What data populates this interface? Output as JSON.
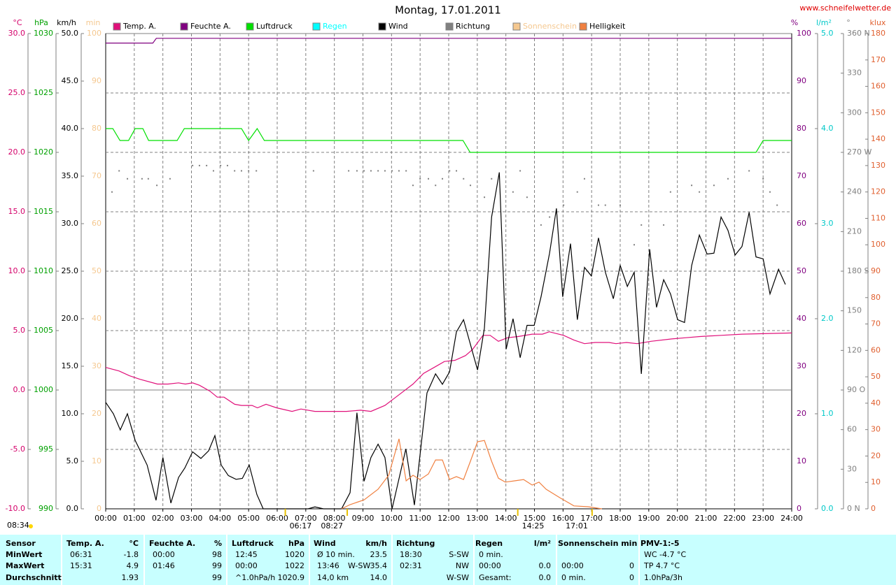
{
  "chart_data": {
    "type": "line",
    "title": "Montag, 17.01.2011",
    "source": "www.schneifelwetter.de",
    "grid": true,
    "xlim": [
      0,
      24
    ],
    "xticks": [
      {
        "value": 0,
        "label": "00:00"
      },
      {
        "value": 1,
        "label": "01:00"
      },
      {
        "value": 2,
        "label": "02:00"
      },
      {
        "value": 3,
        "label": "03:00"
      },
      {
        "value": 4,
        "label": "04:00"
      },
      {
        "value": 5,
        "label": "05:00"
      },
      {
        "value": 6,
        "label": "06:00"
      },
      {
        "value": 7,
        "label": "07:00"
      },
      {
        "value": 8,
        "label": "08:00"
      },
      {
        "value": 9,
        "label": "09:00"
      },
      {
        "value": 10,
        "label": "10:00"
      },
      {
        "value": 11,
        "label": "11:00"
      },
      {
        "value": 12,
        "label": "12:00"
      },
      {
        "value": 13,
        "label": "13:00"
      },
      {
        "value": 14,
        "label": "14:00"
      },
      {
        "value": 15,
        "label": "15:00"
      },
      {
        "value": 16,
        "label": "16:00"
      },
      {
        "value": 17,
        "label": "17:00"
      },
      {
        "value": 18,
        "label": "18:00"
      },
      {
        "value": 19,
        "label": "19:00"
      },
      {
        "value": 20,
        "label": "20:00"
      },
      {
        "value": 21,
        "label": "21:00"
      },
      {
        "value": 22,
        "label": "22:00"
      },
      {
        "value": 23,
        "label": "23:00"
      },
      {
        "value": 24,
        "label": "24:00"
      }
    ],
    "axes": {
      "temp": {
        "label": "°C",
        "color": "#d4006a",
        "lim": [
          -10,
          30
        ],
        "ticks": [
          {
            "value": -10,
            "label": "-10.0"
          },
          {
            "value": -5,
            "label": "-5.0"
          },
          {
            "value": 0,
            "label": "0.0"
          },
          {
            "value": 5,
            "label": "5.0"
          },
          {
            "value": 10,
            "label": "10.0"
          },
          {
            "value": 15,
            "label": "15.0"
          },
          {
            "value": 20,
            "label": "20.0"
          },
          {
            "value": 25,
            "label": "25.0"
          },
          {
            "value": 30,
            "label": "30.0"
          }
        ]
      },
      "hpa": {
        "label": "hPa",
        "color": "#00a000",
        "lim": [
          990,
          1030
        ],
        "ticks": [
          990,
          995,
          1000,
          1005,
          1010,
          1015,
          1020,
          1025,
          1030
        ]
      },
      "kmh": {
        "label": "km/h",
        "color": "#000000",
        "lim": [
          0,
          50
        ],
        "ticks": [
          {
            "value": 0,
            "label": "0.0"
          },
          {
            "value": 5,
            "label": "5.0"
          },
          {
            "value": 10,
            "label": "10.0"
          },
          {
            "value": 15,
            "label": "15.0"
          },
          {
            "value": 20,
            "label": "20.0"
          },
          {
            "value": 25,
            "label": "25.0"
          },
          {
            "value": 30,
            "label": "30.0"
          },
          {
            "value": 35,
            "label": "35.0"
          },
          {
            "value": 40,
            "label": "40.0"
          },
          {
            "value": 45,
            "label": "45.0"
          },
          {
            "value": 50,
            "label": "50.0"
          }
        ]
      },
      "min": {
        "label": "min",
        "color": "#f5c890",
        "lim": [
          0,
          100
        ],
        "ticks": [
          0,
          10,
          20,
          30,
          40,
          50,
          60,
          70,
          80,
          90,
          100
        ]
      },
      "hum": {
        "label": "%",
        "color": "#800080",
        "lim": [
          0,
          100
        ],
        "ticks": [
          0,
          10,
          20,
          30,
          40,
          50,
          60,
          70,
          80,
          90,
          100
        ]
      },
      "rain": {
        "label": "l/m²",
        "color": "#00c8c8",
        "lim": [
          0,
          5
        ],
        "ticks": [
          {
            "value": 0,
            "label": "0.0"
          },
          {
            "value": 1,
            "label": "1.0"
          },
          {
            "value": 2,
            "label": "2.0"
          },
          {
            "value": 3,
            "label": "3.0"
          },
          {
            "value": 4,
            "label": "4.0"
          },
          {
            "value": 5,
            "label": "5.0"
          }
        ]
      },
      "dir": {
        "label": "°",
        "color": "#808080",
        "lim": [
          0,
          360
        ],
        "ticks": [
          {
            "value": 0,
            "label": "0 N"
          },
          30,
          60,
          {
            "value": 90,
            "label": "90 O"
          },
          120,
          150,
          {
            "value": 180,
            "label": "180 S"
          },
          210,
          240,
          {
            "value": 270,
            "label": "270 W"
          },
          300,
          330,
          {
            "value": 360,
            "label": "360 N"
          }
        ]
      },
      "klux": {
        "label": "klux",
        "color": "#e06030",
        "lim": [
          0,
          180
        ],
        "ticks": [
          0,
          10,
          20,
          30,
          40,
          50,
          60,
          70,
          80,
          90,
          100,
          110,
          120,
          130,
          140,
          150,
          160,
          170,
          180
        ]
      }
    },
    "series": [
      {
        "name": "Temp. A.",
        "color": "#e0107a",
        "axis": "temp",
        "type": "line",
        "x": [
          0,
          0.47,
          0.83,
          1.2,
          1.81,
          2.18,
          2.55,
          2.79,
          3.04,
          3.28,
          3.65,
          3.9,
          4.14,
          4.51,
          4.75,
          5.12,
          5.31,
          5.61,
          5.98,
          6.52,
          6.83,
          7.32,
          7.81,
          8.42,
          8.92,
          9.28,
          9.77,
          10.26,
          10.75,
          11.12,
          11.49,
          11.85,
          12.22,
          12.59,
          12.83,
          13.2,
          13.45,
          13.74,
          14.06,
          14.43,
          14.92,
          15.28,
          15.52,
          16.02,
          16.38,
          16.75,
          17.12,
          17.61,
          17.85,
          18.22,
          18.59,
          19.08,
          19.81,
          20.3,
          20.79,
          21.53,
          22.26,
          24
        ],
        "values": [
          1.9,
          1.6,
          1.2,
          0.9,
          0.5,
          0.5,
          0.6,
          0.5,
          0.6,
          0.4,
          -0.1,
          -0.6,
          -0.6,
          -1.2,
          -1.3,
          -1.3,
          -1.5,
          -1.2,
          -1.5,
          -1.8,
          -1.6,
          -1.8,
          -1.8,
          -1.8,
          -1.7,
          -1.8,
          -1.3,
          -0.4,
          0.5,
          1.4,
          1.9,
          2.4,
          2.5,
          2.9,
          3.4,
          4.6,
          4.6,
          4.1,
          4.4,
          4.5,
          4.7,
          4.7,
          4.9,
          4.6,
          4.2,
          3.9,
          4.0,
          4.0,
          3.9,
          4.0,
          3.9,
          4.1,
          4.3,
          4.4,
          4.5,
          4.6,
          4.7,
          4.8
        ]
      },
      {
        "name": "Feuchte A.",
        "color": "#800080",
        "axis": "hum",
        "type": "line",
        "x": [
          0,
          1.65,
          1.77,
          24
        ],
        "values": [
          98,
          98,
          99,
          99
        ]
      },
      {
        "name": "Luftdruck",
        "color": "#00e000",
        "axis": "hpa",
        "type": "line",
        "x": [
          0,
          0.25,
          0.5,
          0.8,
          1.03,
          1.3,
          1.5,
          2.5,
          2.75,
          4.75,
          5.0,
          5.3,
          5.55,
          12.5,
          12.75,
          22.75,
          23.0,
          24
        ],
        "values": [
          1022,
          1022,
          1021,
          1021,
          1022,
          1022,
          1021,
          1021,
          1022,
          1022,
          1021,
          1022,
          1021,
          1021,
          1020,
          1020,
          1021,
          1021
        ]
      },
      {
        "name": "Regen",
        "color": "#00ffff",
        "axis": "rain",
        "type": "line",
        "x": [],
        "values": []
      },
      {
        "name": "Wind",
        "color": "#000000",
        "axis": "kmh",
        "type": "line",
        "x": [
          0,
          0.27,
          0.51,
          0.76,
          1.03,
          1.45,
          1.76,
          2.0,
          2.28,
          2.55,
          2.77,
          3.04,
          3.33,
          3.6,
          3.82,
          4.04,
          4.29,
          4.56,
          4.78,
          5.02,
          5.29,
          5.51,
          7.08,
          7.32,
          7.62,
          8.25,
          8.55,
          8.79,
          9.04,
          9.28,
          9.53,
          9.77,
          10.02,
          10.5,
          10.8,
          11.24,
          11.54,
          11.78,
          12.03,
          12.27,
          12.52,
          13.01,
          13.25,
          13.5,
          13.77,
          14.01,
          14.25,
          14.5,
          14.74,
          14.99,
          15.23,
          15.53,
          15.77,
          15.99,
          16.26,
          16.5,
          16.75,
          16.99,
          17.24,
          17.48,
          17.76,
          18.0,
          18.25,
          18.49,
          18.74,
          19.03,
          19.27,
          19.52,
          19.76,
          20.01,
          20.25,
          20.5,
          20.77,
          21.04,
          21.28,
          21.53,
          21.77,
          22.02,
          22.26,
          22.51,
          22.75,
          23.0,
          23.24,
          23.54,
          23.78
        ],
        "values": [
          11.2,
          10.0,
          8.3,
          10.0,
          7.2,
          4.6,
          0.9,
          5.4,
          0.6,
          3.3,
          4.3,
          6.0,
          5.3,
          6.1,
          7.7,
          4.6,
          3.5,
          3.1,
          3.2,
          4.6,
          1.5,
          0,
          0,
          0.2,
          0,
          0,
          1.7,
          10.1,
          2.9,
          5.4,
          6.8,
          5.4,
          0,
          6.3,
          0.4,
          12.2,
          14.2,
          13.1,
          14.4,
          18.6,
          19.9,
          14.6,
          19.0,
          30.7,
          35.4,
          16.8,
          20.0,
          15.9,
          19.3,
          19.3,
          22.3,
          26.9,
          31.6,
          22.3,
          27.9,
          19.9,
          25.4,
          24.5,
          28.5,
          24.9,
          22.1,
          25.6,
          23.4,
          24.9,
          14.2,
          27.3,
          21.2,
          24.1,
          22.6,
          19.9,
          19.6,
          25.6,
          28.8,
          26.8,
          26.9,
          30.7,
          29.3,
          26.7,
          27.6,
          31.2,
          26.5,
          26.3,
          22.6,
          25.2,
          23.6
        ]
      },
      {
        "name": "Richtung",
        "color": "#808080",
        "axis": "dir",
        "type": "scatter",
        "x": [
          0.22,
          0.47,
          0.76,
          1.27,
          1.49,
          1.79,
          2.25,
          3.04,
          3.28,
          3.53,
          3.77,
          4.02,
          4.26,
          4.51,
          4.75,
          5.0,
          5.27,
          7.27,
          8.5,
          8.79,
          9.04,
          9.28,
          9.53,
          9.77,
          10.02,
          10.26,
          10.51,
          10.75,
          11.0,
          11.29,
          11.54,
          11.78,
          12.03,
          12.27,
          12.52,
          12.76,
          13.25,
          13.5,
          14.25,
          14.5,
          14.74,
          15.23,
          15.53,
          16.02,
          16.5,
          16.75,
          17.24,
          17.48,
          18.0,
          18.49,
          18.74,
          19.52,
          19.76,
          20.5,
          20.77,
          21.28,
          21.77,
          22.51,
          23.0,
          23.24,
          23.49
        ],
        "values": [
          240,
          256,
          250,
          250,
          250,
          245,
          250,
          260,
          260,
          260,
          256,
          260,
          260,
          256,
          256,
          256,
          256,
          256,
          256,
          256,
          256,
          256,
          256,
          256,
          256,
          256,
          256,
          245,
          250,
          250,
          245,
          250,
          256,
          256,
          250,
          245,
          236,
          250,
          240,
          256,
          236,
          215,
          221,
          230,
          240,
          250,
          230,
          230,
          230,
          200,
          215,
          215,
          240,
          245,
          240,
          245,
          250,
          256,
          250,
          240,
          230
        ]
      },
      {
        "name": "Sonnenschein",
        "color": "#f5c890",
        "axis": "min",
        "type": "line",
        "x": [],
        "values": []
      },
      {
        "name": "Helligkeit",
        "color": "#f08040",
        "axis": "klux",
        "type": "line",
        "x": [
          8.25,
          8.55,
          9.04,
          9.53,
          9.9,
          10.26,
          10.51,
          10.75,
          11.0,
          11.29,
          11.54,
          11.78,
          12.03,
          12.27,
          12.52,
          12.76,
          13.01,
          13.25,
          13.5,
          13.74,
          13.98,
          14.3,
          14.62,
          14.92,
          15.16,
          15.41,
          15.89,
          16.38,
          16.87,
          17.36
        ],
        "values": [
          0,
          1.6,
          3.4,
          7.4,
          12.7,
          26.5,
          10.6,
          12.7,
          11.1,
          13.2,
          18.5,
          18.5,
          11.1,
          12.2,
          11.1,
          18.0,
          25.4,
          25.9,
          18.0,
          11.6,
          10.1,
          10.6,
          11.1,
          9.0,
          10.1,
          7.4,
          4.2,
          1.1,
          0.8,
          0
        ]
      }
    ],
    "annotations": [
      "06:17",
      "08:27",
      "14:25",
      "17:01"
    ],
    "corner_time": "08:34"
  },
  "table": {
    "columns": [
      {
        "header": [
          "Sensor"
        ],
        "rows": [
          [
            "MinWert"
          ],
          [
            "MaxWert"
          ],
          [
            "Durchschnitt"
          ]
        ]
      },
      {
        "header": [
          "Temp. A.",
          "°C"
        ],
        "rows": [
          [
            "06:31",
            "-1.8"
          ],
          [
            "15:31",
            "4.9"
          ],
          [
            null,
            "1.93"
          ]
        ]
      },
      {
        "header": [
          "Feuchte A.",
          "%"
        ],
        "rows": [
          [
            "00:00",
            "98"
          ],
          [
            "01:46",
            "99"
          ],
          [
            null,
            "99"
          ]
        ]
      },
      {
        "header": [
          "Luftdruck",
          "hPa"
        ],
        "rows": [
          [
            "12:45",
            "1020"
          ],
          [
            "00:00",
            "1022"
          ],
          [
            "^1.0hPa/h",
            "1020.9"
          ]
        ]
      },
      {
        "header": [
          "Wind",
          "km/h"
        ],
        "rows": [
          [
            "Ø 10 min.",
            "23.5"
          ],
          [
            "13:46",
            "W-SW",
            "35.4"
          ],
          [
            "14,0 km",
            "14.0"
          ]
        ]
      },
      {
        "header": [
          "Richtung"
        ],
        "rows": [
          [
            "18:30",
            "S-SW"
          ],
          [
            "02:31",
            "NW"
          ],
          [
            null,
            "W-SW"
          ]
        ]
      },
      {
        "header": [
          "Regen",
          "l/m²"
        ],
        "rows": [
          [
            "0 min."
          ],
          [
            "00:00",
            "0.0"
          ],
          [
            "Gesamt:",
            "0.0"
          ]
        ]
      },
      {
        "header": [
          "Sonnenschein min"
        ],
        "rows": [
          [],
          [
            "00:00",
            "0"
          ],
          [
            "0 min.",
            "0"
          ]
        ]
      },
      {
        "header": [
          "PMV-1:-5"
        ],
        "rows": [
          [
            "WC -4.7 °C"
          ],
          [
            "TP 4.7 °C"
          ],
          [
            "1.0hPa/3h"
          ]
        ]
      }
    ]
  }
}
